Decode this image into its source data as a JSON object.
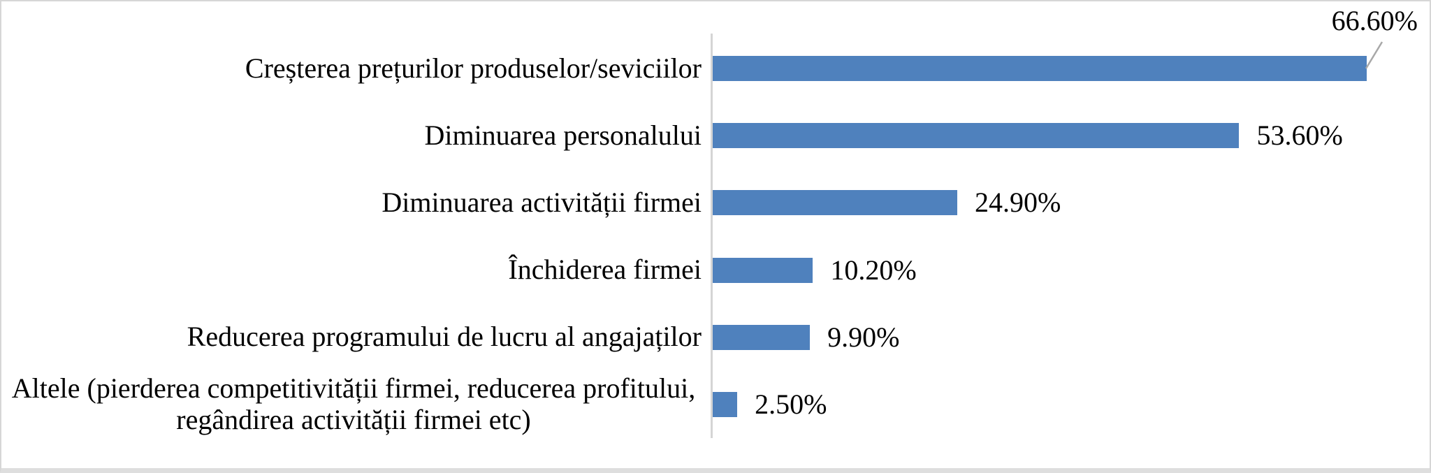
{
  "chart_data": {
    "type": "bar",
    "orientation": "horizontal",
    "title": "",
    "xlabel": "",
    "ylabel": "",
    "xlim": [
      0,
      70
    ],
    "grid": false,
    "legend": null,
    "categories": [
      "Creșterea prețurilor produselor/seviciilor",
      "Diminuarea personalului",
      "Diminuarea activității firmei",
      "Închiderea firmei",
      "Reducerea programului de lucru al angajaților",
      "Altele (pierderea competitivității firmei, reducerea profitului, regândirea activității firmei etc)"
    ],
    "values": [
      66.6,
      53.6,
      24.9,
      10.2,
      9.9,
      2.5
    ],
    "data_labels": [
      "66.60%",
      "53.60%",
      "24.90%",
      "10.20%",
      "9.90%",
      "2.50%"
    ],
    "data_label_placement": [
      "callout-top-right-with-leader-line",
      "right-of-bar",
      "right-of-bar",
      "right-of-bar",
      "right-of-bar",
      "right-of-bar"
    ]
  },
  "style": {
    "bar_color": "#4f81bd",
    "axis_line_color": "#d5d5d5",
    "leader_line_color": "#a8a8a8",
    "text_color": "#000000",
    "background_color": "#ffffff",
    "border_color": "#d6d6d6"
  }
}
